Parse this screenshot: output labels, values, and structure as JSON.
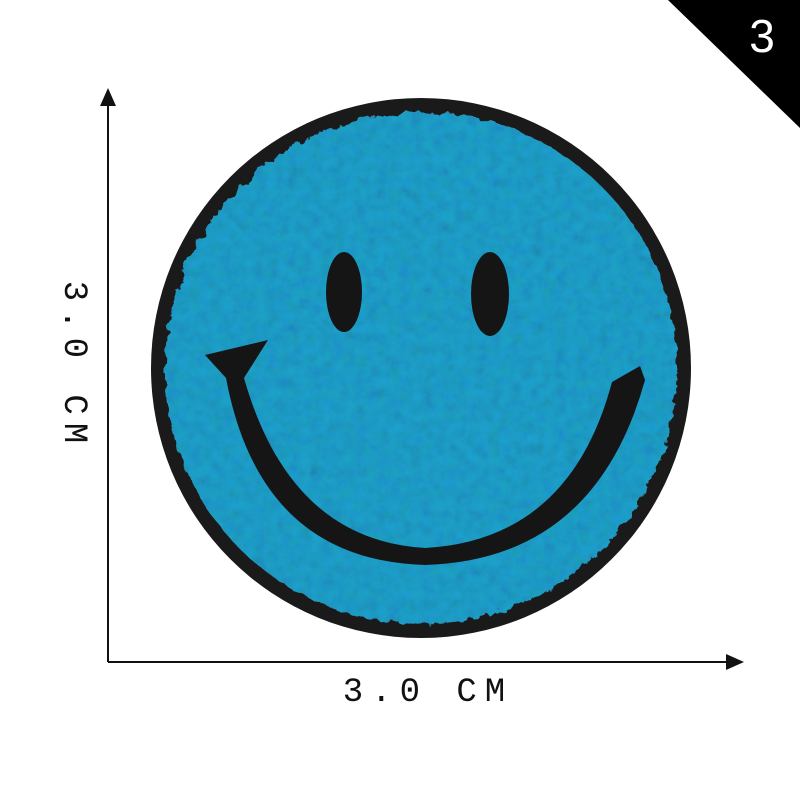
{
  "badge": "3",
  "height_label": "3.0 CM",
  "width_label": "3.0 CM"
}
